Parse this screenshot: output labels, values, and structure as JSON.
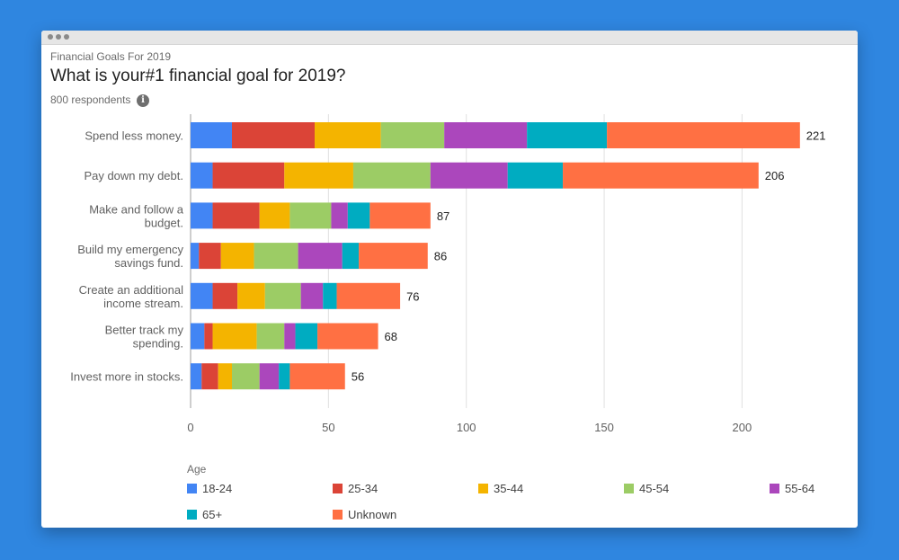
{
  "header": {
    "label": "Financial Goals For 2019",
    "title": "What is your#1 financial goal for 2019?",
    "respondents": "800 respondents",
    "info_icon": "i"
  },
  "legend": {
    "title": "Age"
  },
  "chart_data": {
    "type": "bar",
    "orientation": "horizontal",
    "stacked": true,
    "title": "What is your#1 financial goal for 2019?",
    "xlabel": "",
    "ylabel": "",
    "xlim": [
      0,
      225
    ],
    "xticks": [
      0,
      50,
      100,
      150,
      200
    ],
    "grid": true,
    "legend_title": "Age",
    "legend_position": "bottom",
    "categories": [
      [
        "Spend less money."
      ],
      [
        "Pay down my debt."
      ],
      [
        "Make and follow a",
        "budget."
      ],
      [
        "Build my emergency",
        "savings fund."
      ],
      [
        "Create an additional",
        "income stream."
      ],
      [
        "Better track my",
        "spending."
      ],
      [
        "Invest more in stocks."
      ]
    ],
    "totals": [
      221,
      206,
      87,
      86,
      76,
      68,
      56
    ],
    "series": [
      {
        "name": "18-24",
        "color": "#4285f4",
        "values": [
          15,
          8,
          8,
          3,
          8,
          5,
          4
        ]
      },
      {
        "name": "25-34",
        "color": "#db4437",
        "values": [
          30,
          26,
          17,
          8,
          9,
          3,
          6
        ]
      },
      {
        "name": "35-44",
        "color": "#f4b400",
        "values": [
          24,
          25,
          11,
          12,
          10,
          16,
          5
        ]
      },
      {
        "name": "45-54",
        "color": "#9ccc65",
        "values": [
          23,
          28,
          15,
          16,
          13,
          10,
          10
        ]
      },
      {
        "name": "55-64",
        "color": "#ab47bc",
        "values": [
          30,
          28,
          6,
          16,
          8,
          4,
          7
        ]
      },
      {
        "name": "65+",
        "color": "#00acc1",
        "values": [
          29,
          20,
          8,
          6,
          5,
          8,
          4
        ]
      },
      {
        "name": "Unknown",
        "color": "#ff7043",
        "values": [
          70,
          71,
          22,
          25,
          23,
          22,
          20
        ]
      }
    ]
  }
}
